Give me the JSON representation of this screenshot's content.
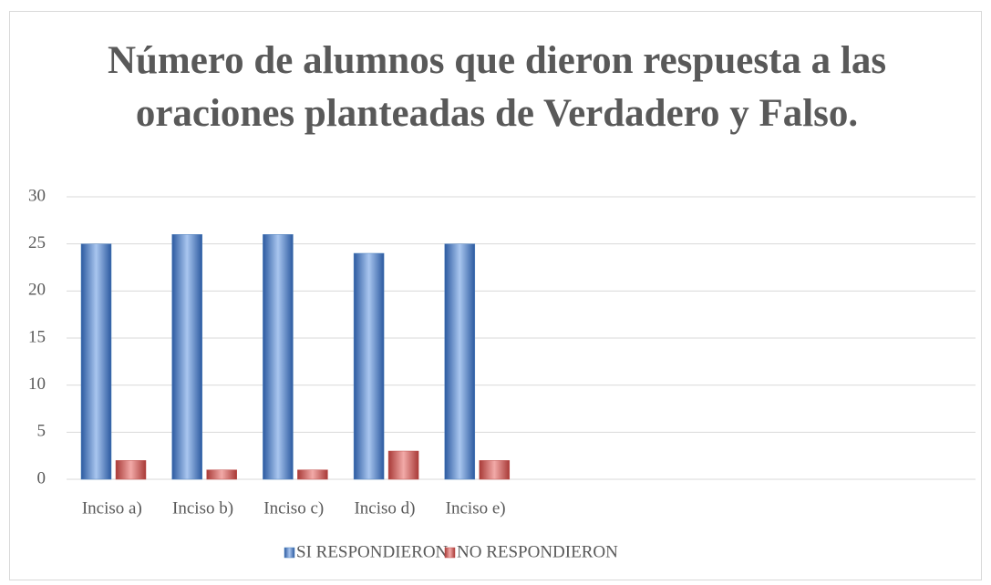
{
  "chart_data": {
    "type": "bar",
    "title": "Número de alumnos que dieron respuesta a las oraciones planteadas de Verdadero y Falso.",
    "categories": [
      "Inciso a)",
      "Inciso b)",
      "Inciso c)",
      "Inciso d)",
      "Inciso e)",
      null,
      null,
      null,
      null,
      null
    ],
    "series": [
      {
        "name": "SI RESPONDIERON",
        "color": "#4f81bd",
        "values": [
          25,
          26,
          26,
          24,
          25,
          null,
          null,
          null,
          null,
          null
        ]
      },
      {
        "name": "NO RESPONDIERON",
        "color": "#c0504d",
        "values": [
          2,
          1,
          1,
          3,
          2,
          null,
          null,
          null,
          null,
          null
        ]
      }
    ],
    "ylim": [
      0,
      30
    ],
    "yticks": [
      0,
      5,
      10,
      15,
      20,
      25,
      30
    ],
    "grid": true,
    "legend": "bottom"
  }
}
